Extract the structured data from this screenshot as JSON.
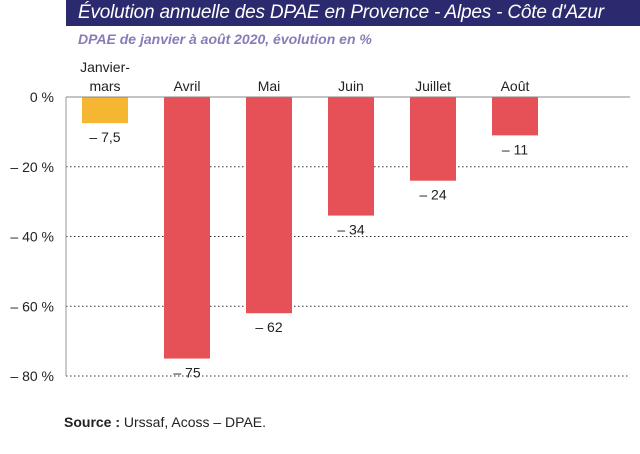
{
  "header": {
    "title": "Évolution annuelle des DPAE en Provence - Alpes - Côte d'Azur",
    "subtitle": "DPAE de janvier à août 2020, évolution en %"
  },
  "footer": {
    "source_label": "Source :",
    "source_text": "Urssaf, Acoss – DPAE."
  },
  "colors": {
    "title_band": "#2b2a6e",
    "subtitle": "#8a7bb8",
    "highlight_bar": "#f5b731",
    "bar": "#e65057"
  },
  "chart_data": {
    "type": "bar",
    "title": "Évolution annuelle des DPAE en Provence - Alpes - Côte d'Azur",
    "subtitle": "DPAE de janvier à août 2020, évolution en %",
    "categories": [
      "Janvier-mars",
      "Avril",
      "Mai",
      "Juin",
      "Juillet",
      "Août"
    ],
    "category_label_lines": [
      [
        "Janvier-",
        "mars"
      ],
      [
        "Avril"
      ],
      [
        "Mai"
      ],
      [
        "Juin"
      ],
      [
        "Juillet"
      ],
      [
        "Août"
      ]
    ],
    "values": [
      -7.5,
      -75,
      -62,
      -34,
      -24,
      -11
    ],
    "value_labels": [
      "– 7,5",
      "– 75",
      "– 62",
      "– 34",
      "– 24",
      "– 11"
    ],
    "bar_colors": [
      "#f5b731",
      "#e65057",
      "#e65057",
      "#e65057",
      "#e65057",
      "#e65057"
    ],
    "ylim": [
      -80,
      0
    ],
    "yticks": [
      0,
      -20,
      -40,
      -60,
      -80
    ],
    "ytick_labels": [
      "0 %",
      "– 20 %",
      "– 40 %",
      "– 60 %",
      "– 80 %"
    ],
    "xlabel": "",
    "ylabel": "",
    "grid": "horizontal dotted",
    "legend": "none"
  }
}
